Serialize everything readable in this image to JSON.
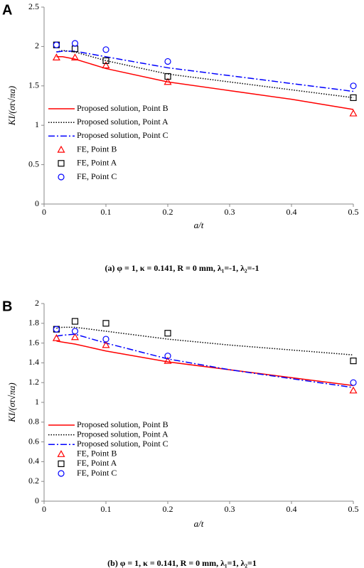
{
  "chart_data": [
    {
      "type": "line",
      "panel": "A",
      "caption": "(a) φ = 1, κ = 0.141, R = 0 mm, λ₁=-1, λ₂=-1",
      "xlabel": "a/t",
      "ylabel": "KI/(σt√πa)",
      "xlim": [
        0,
        0.5
      ],
      "xticks": [
        0,
        0.1,
        0.2,
        0.3,
        0.4,
        0.5
      ],
      "ylim": [
        0,
        2.5
      ],
      "yticks": [
        0,
        0.5,
        1,
        1.5,
        2,
        2.5
      ],
      "series": [
        {
          "name": "Proposed solution, Point B",
          "color": "#ff0000",
          "style": "solid",
          "x": [
            0.02,
            0.03,
            0.05,
            0.1,
            0.2,
            0.3,
            0.4,
            0.5
          ],
          "values": [
            1.87,
            1.87,
            1.84,
            1.72,
            1.55,
            1.44,
            1.33,
            1.2
          ]
        },
        {
          "name": "Proposed solution, Point A",
          "color": "#000000",
          "style": "dotted",
          "x": [
            0.02,
            0.03,
            0.05,
            0.1,
            0.2,
            0.3,
            0.4,
            0.5
          ],
          "values": [
            1.93,
            1.95,
            1.93,
            1.82,
            1.65,
            1.55,
            1.45,
            1.35
          ]
        },
        {
          "name": "Proposed solution, Point C",
          "color": "#0000ff",
          "style": "dashdot",
          "x": [
            0.02,
            0.03,
            0.05,
            0.1,
            0.2,
            0.3,
            0.4,
            0.5
          ],
          "values": [
            1.93,
            1.94,
            1.94,
            1.87,
            1.73,
            1.63,
            1.53,
            1.43
          ]
        },
        {
          "name": "FE, Point B",
          "color": "#ff0000",
          "style": "triangle",
          "x": [
            0.02,
            0.05,
            0.1,
            0.2,
            0.5
          ],
          "values": [
            1.86,
            1.86,
            1.76,
            1.55,
            1.15
          ]
        },
        {
          "name": "FE, Point A",
          "color": "#000000",
          "style": "square",
          "x": [
            0.02,
            0.05,
            0.1,
            0.2,
            0.5
          ],
          "values": [
            2.02,
            1.97,
            1.82,
            1.62,
            1.35
          ]
        },
        {
          "name": "FE, Point C",
          "color": "#0000ff",
          "style": "circle",
          "x": [
            0.02,
            0.05,
            0.1,
            0.2,
            0.5
          ],
          "values": [
            2.02,
            2.04,
            1.96,
            1.81,
            1.5
          ]
        }
      ]
    },
    {
      "type": "line",
      "panel": "B",
      "caption": "(b) φ = 1, κ = 0.141, R = 0 mm, λ₁=1, λ₂=1",
      "xlabel": "a/t",
      "ylabel": "KI/(σt√πa)",
      "xlim": [
        0,
        0.5
      ],
      "xticks": [
        0,
        0.1,
        0.2,
        0.3,
        0.4,
        0.5
      ],
      "ylim": [
        0,
        2
      ],
      "yticks": [
        0,
        0.2,
        0.4,
        0.6,
        0.8,
        1,
        1.2,
        1.4,
        1.6,
        1.8,
        2
      ],
      "series": [
        {
          "name": "Proposed solution, Point B",
          "color": "#ff0000",
          "style": "solid",
          "x": [
            0.02,
            0.03,
            0.05,
            0.1,
            0.2,
            0.3,
            0.4,
            0.5
          ],
          "values": [
            1.62,
            1.61,
            1.59,
            1.52,
            1.41,
            1.33,
            1.25,
            1.17
          ]
        },
        {
          "name": "Proposed solution, Point A",
          "color": "#000000",
          "style": "dotted",
          "x": [
            0.02,
            0.03,
            0.05,
            0.1,
            0.2,
            0.3,
            0.4,
            0.5
          ],
          "values": [
            1.75,
            1.76,
            1.76,
            1.72,
            1.64,
            1.58,
            1.53,
            1.48
          ]
        },
        {
          "name": "Proposed solution, Point C",
          "color": "#0000ff",
          "style": "dashdot",
          "x": [
            0.02,
            0.03,
            0.05,
            0.1,
            0.2,
            0.3,
            0.4,
            0.5
          ],
          "values": [
            1.67,
            1.68,
            1.69,
            1.6,
            1.44,
            1.33,
            1.24,
            1.15
          ]
        },
        {
          "name": "FE, Point B",
          "color": "#ff0000",
          "style": "triangle",
          "x": [
            0.02,
            0.05,
            0.1,
            0.2,
            0.5
          ],
          "values": [
            1.65,
            1.66,
            1.58,
            1.42,
            1.12
          ]
        },
        {
          "name": "FE, Point A",
          "color": "#000000",
          "style": "square",
          "x": [
            0.02,
            0.05,
            0.1,
            0.2,
            0.5
          ],
          "values": [
            1.74,
            1.82,
            1.8,
            1.7,
            1.42
          ]
        },
        {
          "name": "FE, Point C",
          "color": "#0000ff",
          "style": "circle",
          "x": [
            0.02,
            0.05,
            0.1,
            0.2,
            0.5
          ],
          "values": [
            1.74,
            1.72,
            1.64,
            1.47,
            1.2
          ]
        }
      ]
    }
  ]
}
